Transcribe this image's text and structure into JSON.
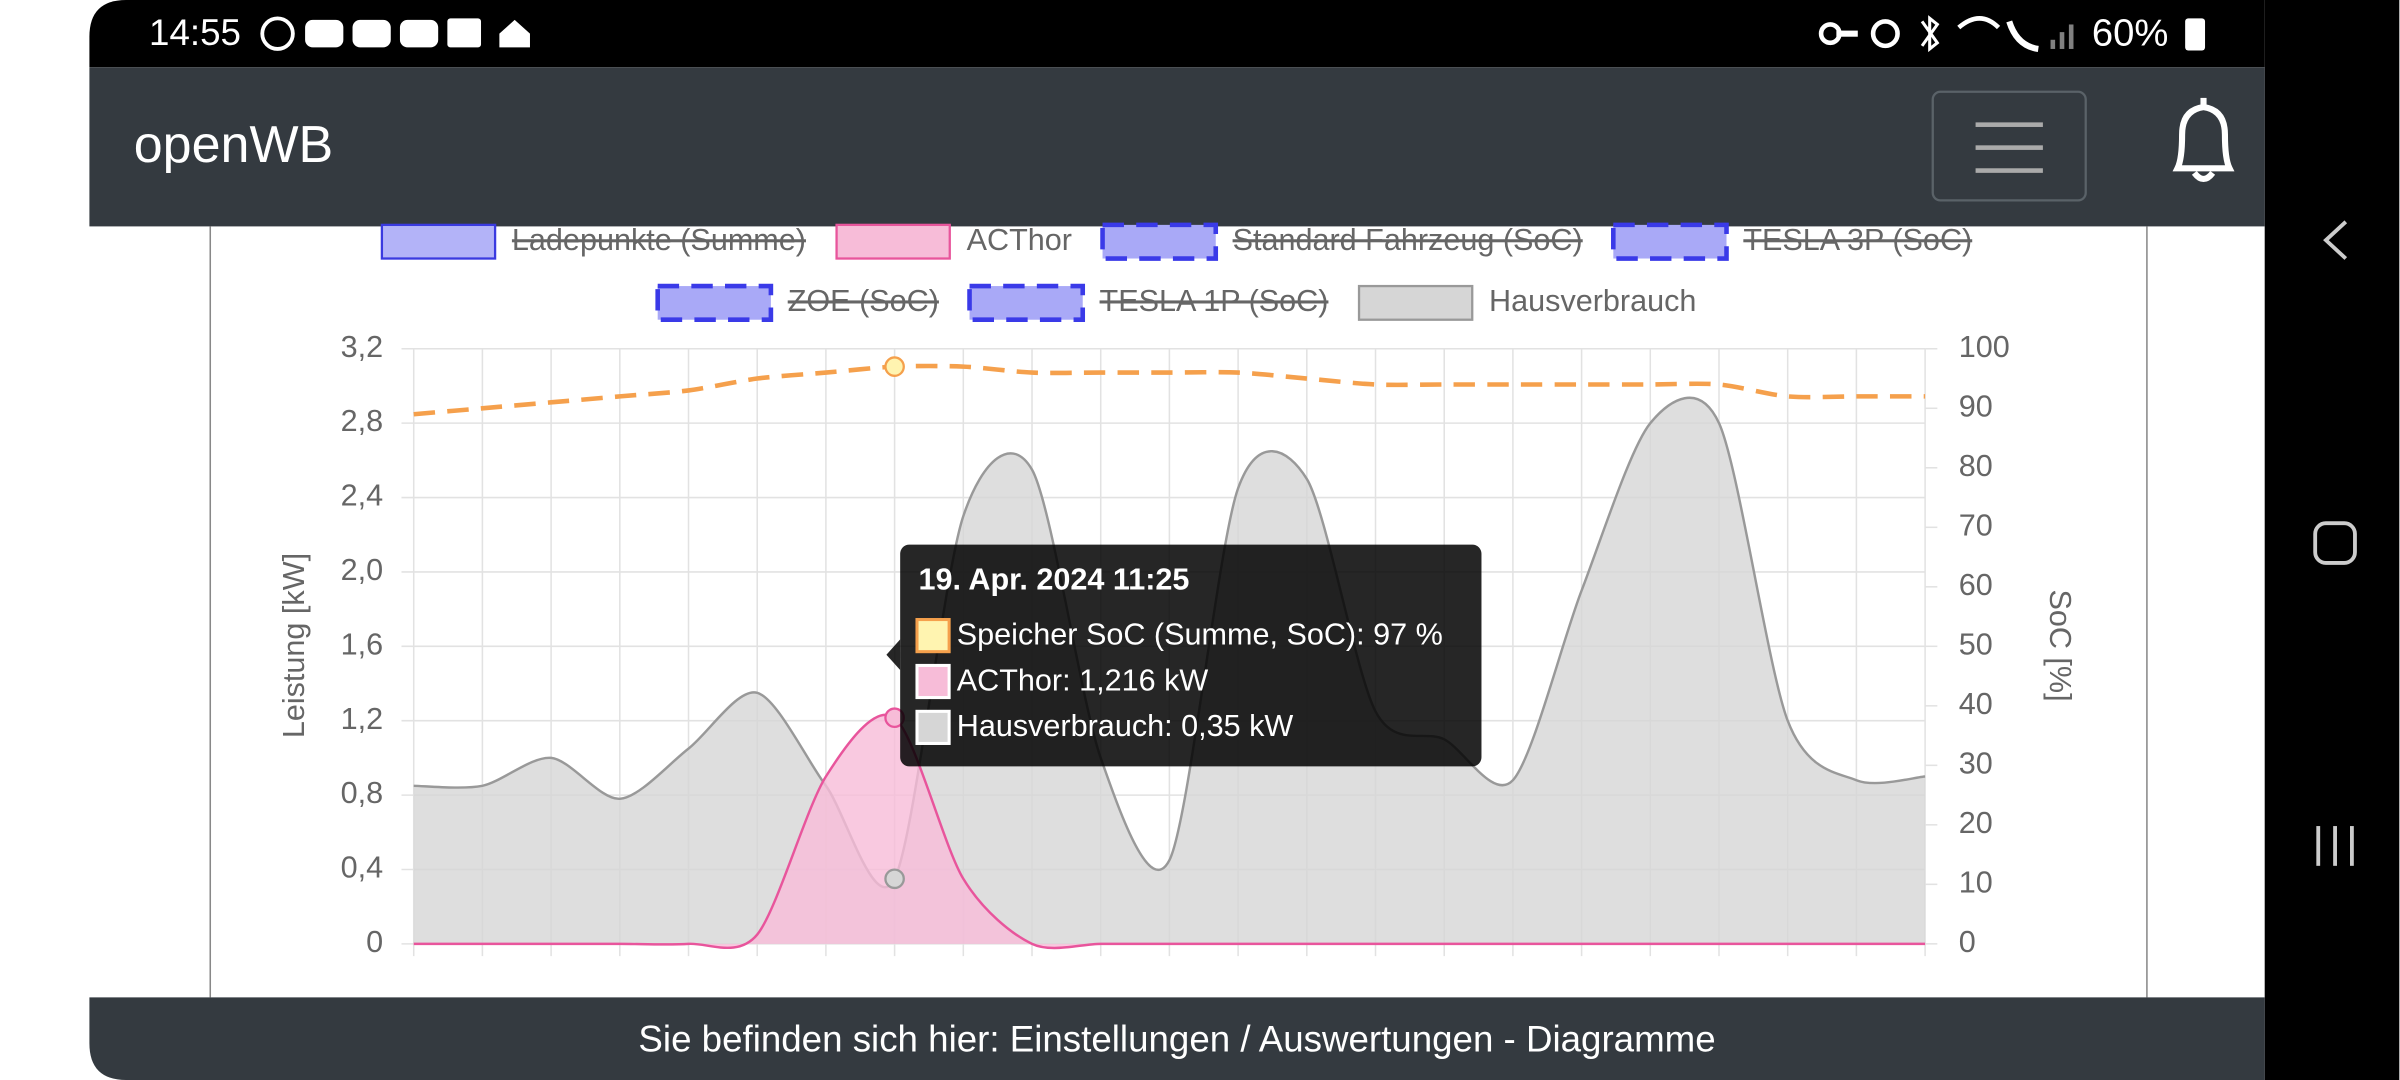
{
  "status_bar": {
    "time": "14:55",
    "battery": "60%"
  },
  "header": {
    "title": "openWB"
  },
  "footer": {
    "text": "Sie befinden sich hier: Einstellungen / Auswertungen - Diagramme"
  },
  "chart_data": {
    "type": "line",
    "categories": [
      null,
      null,
      null,
      null,
      null,
      null,
      null,
      null,
      null,
      null,
      null,
      null,
      null,
      null,
      null,
      null,
      null,
      null,
      null,
      null,
      null,
      null,
      null
    ],
    "series": [
      {
        "name": "Speicher SoC (Summe, SoC)",
        "color": "#f5a04c",
        "fill": "#fff4b0",
        "axis": "y2",
        "dashed": true,
        "legend": false,
        "values": [
          89,
          90,
          91,
          92,
          93,
          95,
          96,
          97,
          97,
          96,
          96,
          96,
          96,
          95,
          94,
          94,
          94,
          94,
          94,
          94,
          92,
          92,
          92
        ]
      },
      {
        "name": "Ladepunkte (Summe)",
        "color": "#3a3ae0",
        "fill": "#b3b3f8",
        "hidden": true
      },
      {
        "name": "ACThor",
        "color": "#e8559c",
        "fill": "#f7bcd8",
        "values": [
          0,
          0,
          0,
          0,
          0,
          0.05,
          0.9,
          1.216,
          0.35,
          0,
          0,
          0,
          0,
          0,
          0,
          0,
          0,
          0,
          0,
          0,
          0,
          0,
          0
        ]
      },
      {
        "name": "Standard Fahrzeug (SoC)",
        "color": "#3a3ae8",
        "fill": "#a9a9f7",
        "hidden": true,
        "dashed": true
      },
      {
        "name": "TESLA 3P (SoC)",
        "color": "#3a3ae8",
        "fill": "#a9a9f7",
        "hidden": true,
        "dashed": true
      },
      {
        "name": "ZOE (SoC)",
        "color": "#3a3ae8",
        "fill": "#a9a9f7",
        "hidden": true,
        "dashed": true
      },
      {
        "name": "TESLA 1P (SoC)",
        "color": "#3a3ae8",
        "fill": "#a9a9f7",
        "hidden": true,
        "dashed": true
      },
      {
        "name": "Hausverbrauch",
        "color": "#999999",
        "fill": "#d6d6d6",
        "values": [
          0.85,
          0.85,
          1.0,
          0.78,
          1.05,
          1.35,
          0.85,
          0.35,
          2.3,
          2.55,
          1.0,
          0.45,
          2.45,
          2.5,
          1.25,
          1.1,
          0.88,
          1.9,
          2.8,
          2.8,
          1.2,
          0.88,
          0.9
        ]
      }
    ],
    "ylabel": "Leistung [kW]",
    "y2label": "SoC [%]",
    "ylim": [
      0,
      3.2
    ],
    "yticks": [
      0,
      {
        "value": 0.4,
        "label": "0,4"
      },
      {
        "value": 0.8,
        "label": "0,8"
      },
      {
        "value": 1.2,
        "label": "1,2"
      },
      {
        "value": 1.6,
        "label": "1,6"
      },
      {
        "value": 2.0,
        "label": "2,0"
      },
      {
        "value": 2.4,
        "label": "2,4"
      },
      {
        "value": 2.8,
        "label": "2,8"
      },
      {
        "value": 3.2,
        "label": "3,2"
      }
    ],
    "y2lim": [
      0,
      100
    ],
    "y2ticks": [
      0,
      10,
      20,
      30,
      40,
      50,
      60,
      70,
      80,
      90,
      100
    ],
    "grid": true,
    "tooltip": {
      "index": 7,
      "title": "19. Apr. 2024 11:25",
      "lines": [
        "Speicher SoC (Summe, SoC): 97 %",
        "ACThor: 1,216 kW",
        "Hausverbrauch: 0,35 kW"
      ]
    }
  }
}
